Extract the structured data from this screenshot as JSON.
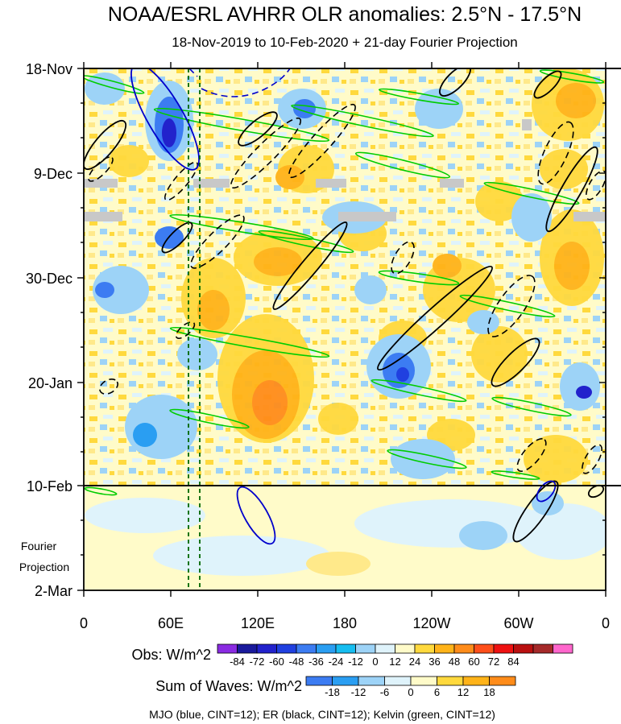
{
  "chart_data": {
    "type": "heatmap",
    "title": "NOAA/ESRL AVHRR OLR anomalies: 2.5°N - 17.5°N",
    "subtitle": "18-Nov-2019 to 10-Feb-2020 + 21-day Fourier Projection",
    "xlabel": "",
    "ylabel": "",
    "x_tick_labels": [
      "0",
      "60E",
      "120E",
      "180",
      "120W",
      "60W",
      "0"
    ],
    "x_range_deg_east": [
      0,
      360
    ],
    "y_tick_labels": [
      "18-Nov",
      "9-Dec",
      "30-Dec",
      "20-Jan",
      "10-Feb",
      "2-Mar"
    ],
    "y_range": [
      "18-Nov-2019",
      "2-Mar-2020"
    ],
    "observation_end": "10-Feb",
    "projection_label_line1": "Fourier",
    "projection_label_line2": "Projection",
    "reference_longitudes_dashed": [
      72,
      80
    ],
    "obs_colorbar": {
      "label": "Obs: W/m^2",
      "levels": [
        -84,
        -72,
        -60,
        -48,
        -36,
        -24,
        -12,
        0,
        12,
        24,
        36,
        48,
        60,
        72,
        84
      ],
      "level_labels": [
        "-84",
        "-72",
        "-60",
        "-48",
        "-36",
        "-24",
        "-12",
        "0",
        "12",
        "24",
        "36",
        "48",
        "60",
        "72",
        "84"
      ],
      "colors": [
        "#8a2be2",
        "#1a1a9c",
        "#2222cc",
        "#2040e0",
        "#3c7cf2",
        "#2a9ef2",
        "#16bdf0",
        "#9dd3f7",
        "#dff3fb",
        "#fffbc9",
        "#ffd93d",
        "#ffb319",
        "#ff8c1a",
        "#ff4f1a",
        "#ee1111",
        "#b91010",
        "#a52a2a",
        "#ff66cc"
      ]
    },
    "waves_colorbar": {
      "label": "Sum of Waves: W/m^2",
      "levels": [
        -18,
        -12,
        -6,
        0,
        6,
        12,
        18
      ],
      "level_labels": [
        "-18",
        "-12",
        "-6",
        "0",
        "6",
        "12",
        "18"
      ],
      "colors": [
        "#3c7cf2",
        "#2a9ef2",
        "#9dd3f7",
        "#dff3fb",
        "#fffbc9",
        "#ffd93d",
        "#ffb319",
        "#ff8c1a"
      ]
    },
    "footer": "MJO (blue, CINT=12); ER (black, CINT=12); Kelvin (green, CINT=12)",
    "series": [
      {
        "name": "MJO",
        "color": "#0000cc",
        "contour_interval": 12
      },
      {
        "name": "ER",
        "color": "#000000",
        "contour_interval": 12
      },
      {
        "name": "Kelvin",
        "color": "#00cc00",
        "contour_interval": 12
      }
    ]
  }
}
